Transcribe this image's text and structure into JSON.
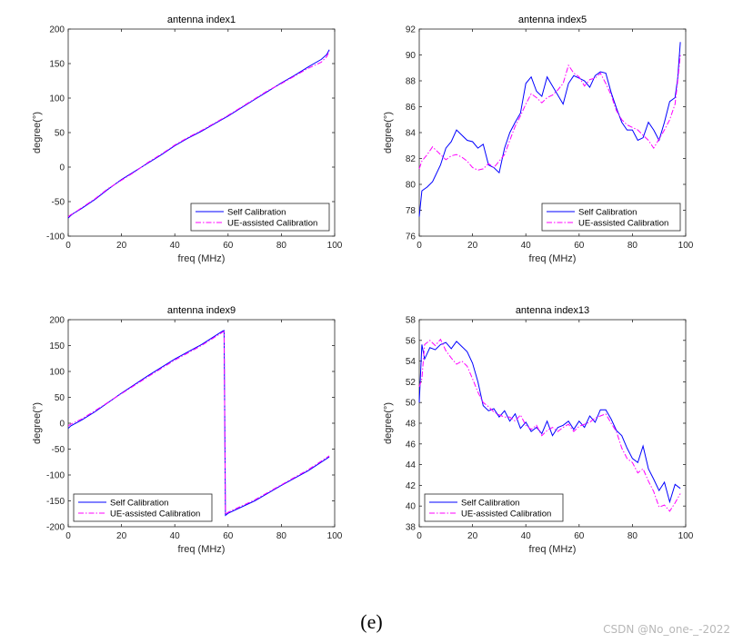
{
  "figure_caption": "(e)",
  "watermark": "CSDN @No_one-_-2022",
  "legend_labels": [
    "Self Calibration",
    "UE-assisted Calibration"
  ],
  "colors": {
    "self": "#0000ff",
    "ue": "#ff00ff"
  },
  "chart_data": [
    {
      "type": "line",
      "title": "antenna index1",
      "xlabel": "freq (MHz)",
      "ylabel": "degree(°)",
      "xlim": [
        0,
        100
      ],
      "ylim": [
        -100,
        200
      ],
      "xticks": [
        0,
        20,
        40,
        60,
        80,
        100
      ],
      "yticks": [
        -100,
        -50,
        0,
        50,
        100,
        150,
        200
      ],
      "legend": "bottom-right",
      "series": [
        {
          "name": "Self Calibration",
          "style": "solid",
          "x": [
            0,
            1,
            2,
            5,
            10,
            15,
            20,
            25,
            30,
            35,
            40,
            45,
            50,
            55,
            60,
            65,
            70,
            75,
            80,
            85,
            90,
            95,
            97,
            98
          ],
          "y": [
            -74,
            -70,
            -67,
            -60,
            -47,
            -32,
            -18,
            -6,
            6,
            18,
            31,
            42,
            52,
            63,
            74,
            86,
            98,
            110,
            122,
            133,
            145,
            156,
            163,
            170
          ]
        },
        {
          "name": "UE-assisted Calibration",
          "style": "dashdot",
          "x": [
            0,
            1,
            2,
            5,
            10,
            15,
            20,
            25,
            30,
            35,
            40,
            45,
            50,
            55,
            60,
            65,
            70,
            75,
            80,
            85,
            90,
            95,
            97,
            98
          ],
          "y": [
            -72,
            -69,
            -67,
            -59,
            -46,
            -31,
            -19,
            -7,
            7,
            19,
            32,
            43,
            53,
            64,
            75,
            87,
            99,
            111,
            121,
            132,
            143,
            152,
            160,
            168
          ]
        }
      ]
    },
    {
      "type": "line",
      "title": "antenna index5",
      "xlabel": "freq (MHz)",
      "ylabel": "degree(°)",
      "xlim": [
        0,
        100
      ],
      "ylim": [
        76,
        92
      ],
      "xticks": [
        0,
        20,
        40,
        60,
        80,
        100
      ],
      "yticks": [
        76,
        78,
        80,
        82,
        84,
        86,
        88,
        90,
        92
      ],
      "legend": "bottom-right",
      "series": [
        {
          "name": "Self Calibration",
          "style": "solid",
          "x": [
            0,
            1,
            3,
            5,
            8,
            10,
            12,
            14,
            16,
            18,
            20,
            22,
            24,
            26,
            28,
            30,
            32,
            34,
            36,
            38,
            40,
            42,
            44,
            46,
            48,
            50,
            52,
            54,
            56,
            58,
            60,
            62,
            64,
            66,
            68,
            70,
            72,
            74,
            76,
            78,
            80,
            82,
            84,
            86,
            88,
            90,
            92,
            94,
            96,
            97,
            98
          ],
          "y": [
            77.5,
            79.5,
            79.8,
            80.2,
            81.5,
            82.8,
            83.3,
            84.2,
            83.8,
            83.4,
            83.3,
            82.8,
            83.1,
            81.5,
            81.3,
            80.9,
            82.8,
            84,
            84.8,
            85.5,
            87.8,
            88.3,
            87.2,
            86.8,
            88.3,
            87.6,
            86.9,
            86.2,
            87.8,
            88.4,
            88.2,
            88,
            87.5,
            88.4,
            88.7,
            88.6,
            87.1,
            85.9,
            84.8,
            84.2,
            84.2,
            83.4,
            83.6,
            84.8,
            84.2,
            83.4,
            84.8,
            86.4,
            86.7,
            88.2,
            91
          ]
        },
        {
          "name": "UE-assisted Calibration",
          "style": "dashdot",
          "x": [
            0,
            1,
            3,
            5,
            8,
            10,
            12,
            14,
            16,
            18,
            20,
            22,
            24,
            26,
            28,
            30,
            32,
            34,
            36,
            38,
            40,
            42,
            44,
            46,
            48,
            50,
            52,
            54,
            56,
            58,
            60,
            62,
            64,
            66,
            68,
            70,
            72,
            74,
            76,
            78,
            80,
            82,
            84,
            86,
            88,
            90,
            92,
            94,
            96,
            97,
            98
          ],
          "y": [
            81.2,
            81.8,
            82.3,
            82.9,
            82.3,
            81.9,
            82.2,
            82.3,
            82.1,
            81.8,
            81.3,
            81.1,
            81.2,
            81.6,
            81.3,
            81.8,
            82.3,
            83.4,
            84.5,
            85.3,
            86.2,
            87,
            86.7,
            86.3,
            86.7,
            86.9,
            87.3,
            87.8,
            89.2,
            88.6,
            88.3,
            87.6,
            88.1,
            88.2,
            88.6,
            87.8,
            86.9,
            85.7,
            85,
            84.6,
            84.4,
            84.2,
            83.8,
            83.4,
            82.8,
            83.5,
            84.2,
            85,
            86.2,
            88,
            90
          ]
        }
      ]
    },
    {
      "type": "line",
      "title": "antenna index9",
      "xlabel": "freq (MHz)",
      "ylabel": "degree(°)",
      "xlim": [
        0,
        100
      ],
      "ylim": [
        -200,
        200
      ],
      "xticks": [
        0,
        20,
        40,
        60,
        80,
        100
      ],
      "yticks": [
        -200,
        -150,
        -100,
        -50,
        0,
        50,
        100,
        150,
        200
      ],
      "legend": "bottom-left",
      "series": [
        {
          "name": "Self Calibration",
          "style": "solid",
          "x": [
            0,
            1,
            5,
            10,
            20,
            30,
            40,
            50,
            58,
            58.5,
            59,
            60,
            70,
            80,
            90,
            98
          ],
          "y": [
            -10,
            -5,
            6,
            22,
            58,
            92,
            124,
            152,
            178,
            179,
            -178,
            -174,
            -150,
            -120,
            -92,
            -65
          ]
        },
        {
          "name": "UE-assisted Calibration",
          "style": "dashdot",
          "x": [
            0,
            1,
            5,
            10,
            20,
            30,
            40,
            50,
            58,
            58.5,
            59,
            60,
            70,
            80,
            90,
            98
          ],
          "y": [
            -5,
            -2,
            8,
            24,
            57,
            90,
            122,
            150,
            176,
            177,
            -176,
            -172,
            -148,
            -119,
            -90,
            -63
          ]
        }
      ]
    },
    {
      "type": "line",
      "title": "antenna index13",
      "xlabel": "freq (MHz)",
      "ylabel": "degree(°)",
      "xlim": [
        0,
        100
      ],
      "ylim": [
        38,
        58
      ],
      "xticks": [
        0,
        20,
        40,
        60,
        80,
        100
      ],
      "yticks": [
        38,
        40,
        42,
        44,
        46,
        48,
        50,
        52,
        54,
        56,
        58
      ],
      "legend": "bottom-left",
      "series": [
        {
          "name": "Self Calibration",
          "style": "solid",
          "x": [
            0,
            1,
            2,
            4,
            6,
            8,
            10,
            12,
            14,
            16,
            18,
            20,
            22,
            24,
            26,
            28,
            30,
            32,
            34,
            36,
            38,
            40,
            42,
            44,
            46,
            48,
            50,
            52,
            54,
            56,
            58,
            60,
            62,
            64,
            66,
            68,
            70,
            72,
            74,
            76,
            78,
            80,
            82,
            84,
            86,
            88,
            90,
            92,
            94,
            96,
            98
          ],
          "y": [
            50,
            55.6,
            54.2,
            55.3,
            55.1,
            55.6,
            55.8,
            55.2,
            55.9,
            55.4,
            54.9,
            53.8,
            52,
            49.7,
            49.2,
            49.4,
            48.6,
            49.2,
            48.2,
            48.9,
            47.5,
            48.1,
            47.2,
            47.6,
            47,
            48.2,
            46.8,
            47.6,
            47.8,
            48.2,
            47.4,
            48.2,
            47.6,
            48.7,
            48.1,
            49.3,
            49.3,
            48.4,
            47.3,
            46.8,
            45.6,
            44.6,
            44.2,
            45.8,
            43.6,
            42.6,
            41.5,
            42.3,
            40.4,
            42.1,
            41.7
          ]
        },
        {
          "name": "UE-assisted Calibration",
          "style": "dashdot",
          "x": [
            0,
            1,
            2,
            4,
            6,
            8,
            10,
            12,
            14,
            16,
            18,
            20,
            22,
            24,
            26,
            28,
            30,
            32,
            34,
            36,
            38,
            40,
            42,
            44,
            46,
            48,
            50,
            52,
            54,
            56,
            58,
            60,
            62,
            64,
            66,
            68,
            70,
            72,
            74,
            76,
            78,
            80,
            82,
            84,
            86,
            88,
            90,
            92,
            94,
            96,
            98
          ],
          "y": [
            51.5,
            52.3,
            55.6,
            56,
            55.5,
            56.1,
            55,
            54.3,
            53.7,
            54,
            53.5,
            52.3,
            51,
            50,
            49.6,
            49.1,
            48.8,
            48.6,
            48.6,
            48.2,
            48.8,
            47.8,
            47.4,
            47.8,
            46.8,
            47.3,
            47.6,
            47.2,
            47.6,
            47.9,
            47.2,
            47.7,
            47.9,
            48.1,
            48.5,
            48.7,
            48.9,
            48,
            47.2,
            45.6,
            44.6,
            44.2,
            43.2,
            43.6,
            42.4,
            41.4,
            39.9,
            40.1,
            39.5,
            40.3,
            41.2
          ]
        }
      ]
    }
  ]
}
